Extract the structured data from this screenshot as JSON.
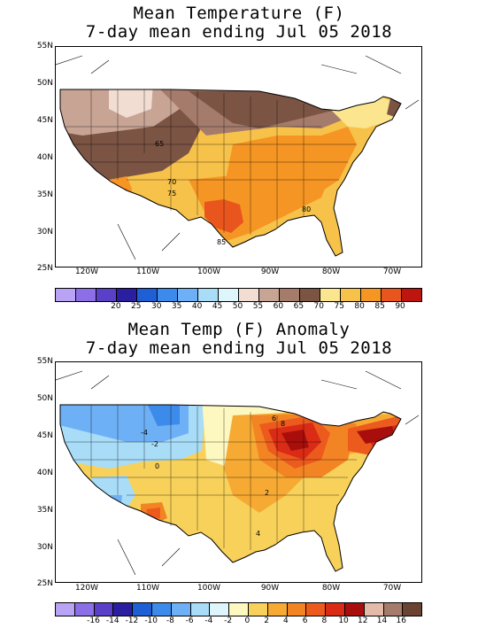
{
  "panel1": {
    "title_line1": "Mean Temperature (F)",
    "title_line2": "7-day mean ending Jul 05 2018",
    "lat_labels": [
      "55N",
      "50N",
      "45N",
      "40N",
      "35N",
      "30N",
      "25N"
    ],
    "lon_labels": [
      "120W",
      "110W",
      "100W",
      "90W",
      "80W",
      "70W"
    ],
    "legend_values": [
      "20",
      "25",
      "30",
      "35",
      "40",
      "45",
      "50",
      "55",
      "60",
      "65",
      "70",
      "75",
      "80",
      "85",
      "90"
    ],
    "legend_colors": [
      "#b9a3f5",
      "#8c6fe6",
      "#5a3fc8",
      "#2a1fa0",
      "#1f5fd6",
      "#3c8aea",
      "#6db0f5",
      "#a8dcf7",
      "#ddf5fb",
      "#f1ddd1",
      "#c8a495",
      "#a57c6c",
      "#7b5444",
      "#fbe58f",
      "#f7c24a",
      "#f59523",
      "#e8561d",
      "#bd1510"
    ],
    "contour_labels": [
      "65",
      "70",
      "75",
      "80",
      "85"
    ]
  },
  "panel2": {
    "title_line1": "Mean Temp (F) Anomaly",
    "title_line2": "7-day mean ending Jul 05 2018",
    "lat_labels": [
      "55N",
      "50N",
      "45N",
      "40N",
      "35N",
      "30N",
      "25N"
    ],
    "lon_labels": [
      "120W",
      "110W",
      "100W",
      "90W",
      "80W",
      "70W"
    ],
    "legend_values": [
      "-16",
      "-14",
      "-12",
      "-10",
      "-8",
      "-6",
      "-4",
      "-2",
      "0",
      "2",
      "4",
      "6",
      "8",
      "10",
      "12",
      "14",
      "16"
    ],
    "legend_colors": [
      "#b9a3f5",
      "#8c6fe6",
      "#5a3fc8",
      "#2a1fa0",
      "#1f5fd6",
      "#3c8aea",
      "#6db0f5",
      "#a8dcf7",
      "#ddf5fb",
      "#fdf7c0",
      "#f7d15a",
      "#f6aa33",
      "#f38424",
      "#ec5a1e",
      "#d92b15",
      "#a80f0c",
      "#e4bba9",
      "#a57c6c",
      "#6b4333"
    ],
    "contour_labels": [
      "-4",
      "-2",
      "0",
      "2",
      "4",
      "6",
      "8"
    ]
  }
}
